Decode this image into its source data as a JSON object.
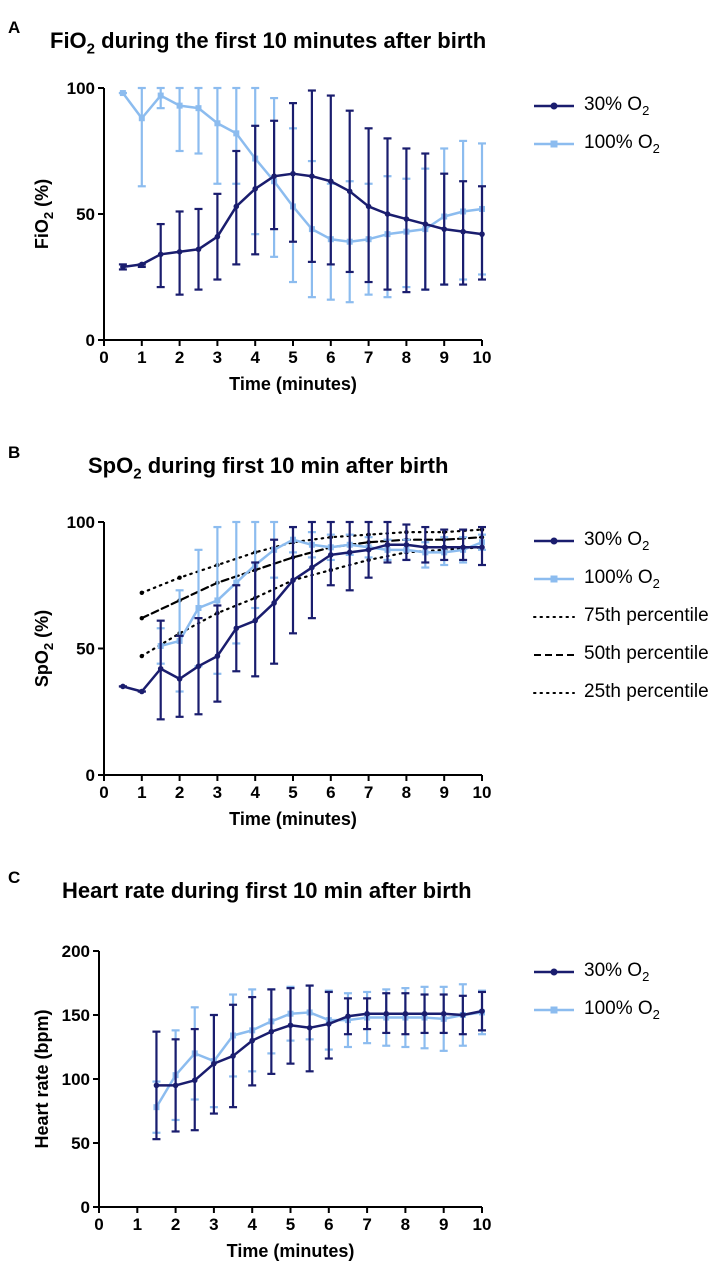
{
  "colors": {
    "dark": "#1a1d6e",
    "light": "#8cbcef",
    "ref": "#000000"
  },
  "legend": {
    "series1": {
      "base": "30% O",
      "sub": "2"
    },
    "series2": {
      "base": "100% O",
      "sub": "2"
    },
    "p75": "75th percentile",
    "p50": "50th percentile",
    "p25": "25th percentile"
  },
  "chart_data": [
    {
      "id": "A",
      "letter": "A",
      "type": "line",
      "title": {
        "pre": "FiO",
        "sub": "2",
        "post": " during the first 10 minutes after birth"
      },
      "xlabel": "Time (minutes)",
      "ylabel": {
        "pre": "FiO",
        "sub": "2",
        "post": " (%)"
      },
      "xlim": [
        0,
        10
      ],
      "ylim": [
        0,
        100
      ],
      "xticks": [
        0,
        1,
        2,
        3,
        4,
        5,
        6,
        7,
        8,
        9,
        10
      ],
      "yticks": [
        0,
        50,
        100
      ],
      "series": [
        {
          "name": "30% O2",
          "color": "dark",
          "marker": "circle",
          "x": [
            0.5,
            1,
            1.5,
            2,
            2.5,
            3,
            3.5,
            4,
            4.5,
            5,
            5.5,
            6,
            6.5,
            7,
            7.5,
            8,
            8.5,
            9,
            9.5,
            10
          ],
          "y": [
            29,
            30,
            34,
            35,
            36,
            41,
            53,
            60,
            65,
            66,
            65,
            63,
            59,
            53,
            50,
            48,
            46,
            44,
            43,
            42
          ],
          "upper": [
            30,
            30,
            46,
            51,
            52,
            58,
            75,
            85,
            87,
            94,
            99,
            97,
            91,
            84,
            80,
            76,
            74,
            66,
            63,
            61
          ],
          "lower": [
            28,
            29,
            21,
            18,
            20,
            24,
            30,
            34,
            44,
            39,
            31,
            30,
            27,
            23,
            20,
            19,
            20,
            22,
            22,
            24
          ]
        },
        {
          "name": "100% O2",
          "color": "light",
          "marker": "square",
          "x": [
            0.5,
            1,
            1.5,
            2,
            2.5,
            3,
            3.5,
            4,
            4.5,
            5,
            5.5,
            6,
            6.5,
            7,
            7.5,
            8,
            8.5,
            9,
            9.5,
            10
          ],
          "y": [
            98,
            88,
            97,
            93,
            92,
            86,
            82,
            72,
            63,
            53,
            44,
            40,
            39,
            40,
            42,
            43,
            44,
            49,
            51,
            52
          ],
          "upper": [
            98,
            100,
            100,
            100,
            100,
            100,
            100,
            100,
            96,
            84,
            71,
            62,
            63,
            62,
            65,
            64,
            68,
            76,
            79,
            78
          ],
          "lower": [
            98,
            61,
            92,
            75,
            74,
            62,
            62,
            42,
            33,
            23,
            17,
            16,
            15,
            18,
            17,
            21,
            20,
            22,
            24,
            26
          ]
        }
      ]
    },
    {
      "id": "B",
      "letter": "B",
      "type": "line",
      "title": {
        "pre": "SpO",
        "sub": "2",
        "post": " during first 10 min after birth"
      },
      "xlabel": "Time (minutes)",
      "ylabel": {
        "pre": "SpO",
        "sub": "2",
        "post": " (%)"
      },
      "xlim": [
        0,
        10
      ],
      "ylim": [
        0,
        100
      ],
      "xticks": [
        0,
        1,
        2,
        3,
        4,
        5,
        6,
        7,
        8,
        9,
        10
      ],
      "yticks": [
        0,
        50,
        100
      ],
      "series": [
        {
          "name": "30% O2",
          "color": "dark",
          "marker": "circle",
          "x": [
            0.5,
            1,
            1.5,
            2,
            2.5,
            3,
            3.5,
            4,
            4.5,
            5,
            5.5,
            6,
            6.5,
            7,
            7.5,
            8,
            8.5,
            9,
            9.5,
            10
          ],
          "y": [
            35,
            33,
            42,
            38,
            43,
            47,
            58,
            61,
            68,
            77,
            82,
            87,
            88,
            89,
            91,
            91,
            90,
            90,
            90,
            90
          ],
          "upper": [
            35,
            33,
            61,
            55,
            62,
            67,
            75,
            84,
            93,
            98,
            100,
            100,
            100,
            100,
            100,
            99,
            98,
            97,
            97,
            98
          ],
          "lower": [
            35,
            33,
            22,
            23,
            24,
            29,
            41,
            39,
            44,
            56,
            62,
            75,
            73,
            78,
            84,
            85,
            84,
            85,
            85,
            83
          ]
        },
        {
          "name": "100% O2",
          "color": "light",
          "marker": "square",
          "x": [
            1.5,
            2,
            2.5,
            3,
            3.5,
            4,
            4.5,
            5,
            5.5,
            6,
            6.5,
            7,
            7.5,
            8,
            8.5,
            9,
            9.5,
            10
          ],
          "y": [
            51,
            53,
            66,
            69,
            76,
            83,
            89,
            93,
            91,
            90,
            91,
            90,
            89,
            89,
            88,
            88,
            89,
            92
          ],
          "upper": [
            58,
            73,
            89,
            98,
            100,
            100,
            100,
            98,
            96,
            95,
            95,
            94,
            93,
            93,
            92,
            94,
            94,
            95
          ],
          "lower": [
            44,
            33,
            43,
            40,
            52,
            66,
            78,
            88,
            86,
            85,
            87,
            86,
            85,
            85,
            82,
            83,
            84,
            89
          ]
        },
        {
          "name": "75th percentile",
          "color": "ref",
          "dash": "dot",
          "x": [
            1,
            2,
            3,
            4,
            5,
            6,
            7,
            8,
            9,
            10
          ],
          "y": [
            72,
            78,
            83,
            88,
            92,
            94,
            95,
            96,
            96,
            97
          ]
        },
        {
          "name": "50th percentile",
          "color": "ref",
          "dash": "dash",
          "x": [
            1,
            2,
            3,
            4,
            5,
            6,
            7,
            8,
            9,
            10
          ],
          "y": [
            62,
            69,
            76,
            81,
            86,
            90,
            92,
            93,
            93,
            94
          ]
        },
        {
          "name": "25th percentile",
          "color": "ref",
          "dash": "dot",
          "x": [
            1,
            2,
            3,
            4,
            5,
            6,
            7,
            8,
            9,
            10
          ],
          "y": [
            47,
            56,
            64,
            70,
            77,
            81,
            85,
            88,
            89,
            90
          ]
        }
      ]
    },
    {
      "id": "C",
      "letter": "C",
      "type": "line",
      "title": {
        "pre": "Heart rate during first 10 min after birth",
        "sub": "",
        "post": ""
      },
      "xlabel": "Time (minutes)",
      "ylabel": {
        "pre": "Heart rate (bpm)",
        "sub": "",
        "post": ""
      },
      "xlim": [
        0,
        10
      ],
      "ylim": [
        0,
        200
      ],
      "xticks": [
        0,
        1,
        2,
        3,
        4,
        5,
        6,
        7,
        8,
        9,
        10
      ],
      "yticks": [
        0,
        50,
        100,
        150,
        200
      ],
      "series": [
        {
          "name": "30% O2",
          "color": "dark",
          "marker": "circle",
          "x": [
            1.5,
            2,
            2.5,
            3,
            3.5,
            4,
            4.5,
            5,
            5.5,
            6,
            6.5,
            7,
            7.5,
            8,
            8.5,
            9,
            9.5,
            10
          ],
          "y": [
            95,
            95,
            99,
            112,
            118,
            130,
            137,
            142,
            140,
            143,
            149,
            151,
            151,
            151,
            151,
            151,
            150,
            153
          ],
          "upper": [
            137,
            131,
            139,
            150,
            158,
            164,
            170,
            171,
            173,
            168,
            163,
            163,
            167,
            167,
            166,
            166,
            165,
            168
          ],
          "lower": [
            53,
            59,
            60,
            73,
            78,
            95,
            104,
            112,
            106,
            116,
            135,
            139,
            136,
            135,
            136,
            136,
            135,
            138
          ]
        },
        {
          "name": "100% O2",
          "color": "light",
          "marker": "square",
          "x": [
            1.5,
            2,
            2.5,
            3,
            3.5,
            4,
            4.5,
            5,
            5.5,
            6,
            6.5,
            7,
            7.5,
            8,
            8.5,
            9,
            9.5,
            10
          ],
          "y": [
            78,
            103,
            120,
            114,
            134,
            138,
            145,
            151,
            152,
            146,
            146,
            148,
            148,
            148,
            148,
            147,
            150,
            152
          ],
          "upper": [
            98,
            138,
            156,
            150,
            166,
            170,
            170,
            172,
            173,
            169,
            167,
            168,
            170,
            171,
            172,
            172,
            174,
            169
          ],
          "lower": [
            58,
            68,
            84,
            78,
            102,
            106,
            120,
            130,
            131,
            123,
            125,
            128,
            126,
            125,
            124,
            122,
            126,
            135
          ]
        }
      ]
    }
  ]
}
